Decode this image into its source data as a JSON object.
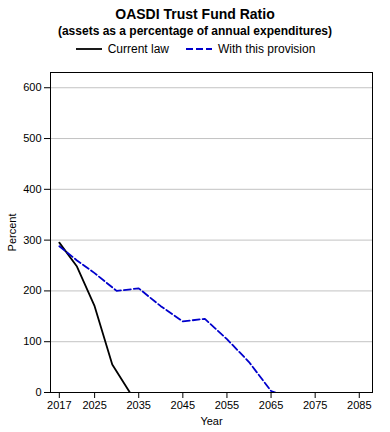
{
  "chart_data": {
    "type": "line",
    "title": "OASDI  Trust Fund Ratio",
    "subtitle": "(assets as a percentage of annual expenditures)",
    "xlabel": "Year",
    "ylabel": "Percent",
    "series": [
      {
        "name": "Current law",
        "color": "#000000",
        "line_style": "solid",
        "x": [
          2017,
          2021,
          2025,
          2029,
          2033
        ],
        "values": [
          295,
          248,
          170,
          55,
          0
        ]
      },
      {
        "name": "With this provision",
        "color": "#0000cc",
        "line_style": "dashed",
        "x": [
          2017,
          2021,
          2025,
          2030,
          2035,
          2040,
          2045,
          2050,
          2055,
          2060,
          2065,
          2066
        ],
        "values": [
          288,
          260,
          235,
          200,
          205,
          170,
          140,
          145,
          105,
          60,
          3,
          0
        ]
      }
    ],
    "xlim": [
      2015,
      2088
    ],
    "ylim": [
      0,
      630
    ],
    "xticks": [
      2017,
      2025,
      2035,
      2045,
      2055,
      2065,
      2075,
      2085
    ],
    "yticks": [
      0,
      100,
      200,
      300,
      400,
      500,
      600
    ],
    "grid": "y",
    "legend": "top"
  }
}
